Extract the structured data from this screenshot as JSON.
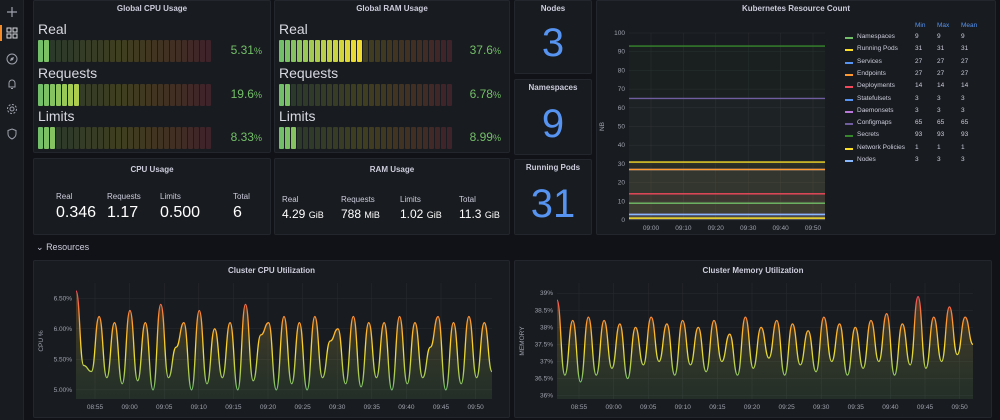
{
  "sidebar": {
    "icons": [
      "plus-icon",
      "dashboards-icon",
      "compass-icon",
      "bell-icon",
      "gear-icon",
      "shield-icon"
    ]
  },
  "global_cpu": {
    "title": "Global CPU Usage",
    "rows": [
      {
        "label": "Real",
        "value": "5.31",
        "unit": "%",
        "fill": 0.0531
      },
      {
        "label": "Requests",
        "value": "19.6",
        "unit": "%",
        "fill": 0.196
      },
      {
        "label": "Limits",
        "value": "8.33",
        "unit": "%",
        "fill": 0.0833
      }
    ]
  },
  "global_ram": {
    "title": "Global RAM Usage",
    "rows": [
      {
        "label": "Real",
        "value": "37.6",
        "unit": "%",
        "fill": 0.376
      },
      {
        "label": "Requests",
        "value": "6.78",
        "unit": "%",
        "fill": 0.0678
      },
      {
        "label": "Limits",
        "value": "8.99",
        "unit": "%",
        "fill": 0.0899
      }
    ]
  },
  "nodes": {
    "title": "Nodes",
    "value": "3"
  },
  "namespaces": {
    "title": "Namespaces",
    "value": "9"
  },
  "running_pods": {
    "title": "Running Pods",
    "value": "31"
  },
  "cpu_usage": {
    "title": "CPU Usage",
    "cols": [
      {
        "label": "Real",
        "value": "0.346",
        "unit": ""
      },
      {
        "label": "Requests",
        "value": "1.17",
        "unit": ""
      },
      {
        "label": "Limits",
        "value": "0.500",
        "unit": ""
      },
      {
        "label": "Total",
        "value": "6",
        "unit": ""
      }
    ]
  },
  "ram_usage": {
    "title": "RAM Usage",
    "cols": [
      {
        "label": "Real",
        "value": "4.29",
        "unit": "GiB"
      },
      {
        "label": "Requests",
        "value": "788",
        "unit": "MiB"
      },
      {
        "label": "Limits",
        "value": "1.02",
        "unit": "GiB"
      },
      {
        "label": "Total",
        "value": "11.3",
        "unit": "GiB"
      }
    ]
  },
  "section": {
    "label": "Resources",
    "chevron": "chevron-down-icon"
  },
  "chart_data": [
    {
      "type": "line",
      "title": "Kubernetes Resource Count",
      "ylabel": "NB",
      "ylim": [
        0,
        100
      ],
      "yticks": [
        "0",
        "10",
        "20",
        "30",
        "40",
        "50",
        "60",
        "70",
        "80",
        "90",
        "100"
      ],
      "xticks": [
        "09:00",
        "09:10",
        "09:20",
        "09:30",
        "09:40",
        "09:50"
      ],
      "legend_headers": [
        "Min",
        "Max",
        "Mean"
      ],
      "series": [
        {
          "name": "Namespaces",
          "color": "#73bf69",
          "min": "9",
          "max": "9",
          "mean": "9",
          "value": 9
        },
        {
          "name": "Running Pods",
          "color": "#fade2a",
          "min": "31",
          "max": "31",
          "mean": "31",
          "value": 31
        },
        {
          "name": "Services",
          "color": "#5794f2",
          "min": "27",
          "max": "27",
          "mean": "27",
          "value": 27
        },
        {
          "name": "Endpoints",
          "color": "#ff9830",
          "min": "27",
          "max": "27",
          "mean": "27",
          "value": 27
        },
        {
          "name": "Deployments",
          "color": "#f2495c",
          "min": "14",
          "max": "14",
          "mean": "14",
          "value": 14
        },
        {
          "name": "Statefulsets",
          "color": "#5794f2",
          "min": "3",
          "max": "3",
          "mean": "3",
          "value": 3
        },
        {
          "name": "Daemonsets",
          "color": "#b877d9",
          "min": "3",
          "max": "3",
          "mean": "3",
          "value": 3
        },
        {
          "name": "Configmaps",
          "color": "#705da0",
          "min": "65",
          "max": "65",
          "mean": "65",
          "value": 65
        },
        {
          "name": "Secrets",
          "color": "#37872d",
          "min": "93",
          "max": "93",
          "mean": "93",
          "value": 93
        },
        {
          "name": "Network Policies",
          "color": "#fade2a",
          "min": "1",
          "max": "1",
          "mean": "1",
          "value": 1
        },
        {
          "name": "Nodes",
          "color": "#8ab8ff",
          "min": "3",
          "max": "3",
          "mean": "3",
          "value": 3
        }
      ]
    },
    {
      "type": "line",
      "title": "Cluster CPU Utilization",
      "ylabel": "CPU %",
      "ylim": [
        4.85,
        6.75
      ],
      "yticks": [
        "5.00%",
        "5.50%",
        "6.00%",
        "6.50%"
      ],
      "ytick_values": [
        5.0,
        5.5,
        6.0,
        6.5
      ],
      "xticks": [
        "08:55",
        "09:00",
        "09:05",
        "09:10",
        "09:15",
        "09:20",
        "09:25",
        "09:30",
        "09:35",
        "09:40",
        "09:45",
        "09:50"
      ],
      "values": [
        6.62,
        5.4,
        5.3,
        6.2,
        5.2,
        6.1,
        5.1,
        6.3,
        5.15,
        6.1,
        5.0,
        6.4,
        5.2,
        5.7,
        6.1,
        5.0,
        6.3,
        5.1,
        6.0,
        5.2,
        6.1,
        5.0,
        6.4,
        5.15,
        5.9,
        6.1,
        5.0,
        6.2,
        5.1,
        6.1,
        5.0,
        6.2,
        5.2,
        5.8,
        6.0,
        5.1,
        6.2,
        5.05,
        6.1,
        5.2,
        6.1,
        5.0,
        6.2,
        5.1,
        6.1,
        5.2,
        5.7,
        6.2,
        5.0,
        6.1,
        5.1,
        6.2,
        5.2,
        6.1,
        5.3
      ]
    },
    {
      "type": "line",
      "title": "Cluster Memory Utilization",
      "ylabel": "MEMORY",
      "ylim": [
        35.9,
        39.3
      ],
      "yticks": [
        "36%",
        "36.5%",
        "37%",
        "37.5%",
        "38%",
        "38.5%",
        "39%"
      ],
      "ytick_values": [
        36,
        36.5,
        37,
        37.5,
        38,
        38.5,
        39
      ],
      "xticks": [
        "08:55",
        "09:00",
        "09:05",
        "09:10",
        "09:15",
        "09:20",
        "09:25",
        "09:30",
        "09:35",
        "09:40",
        "09:45",
        "09:50"
      ],
      "values": [
        38.8,
        36.6,
        38.2,
        36.4,
        38.3,
        36.6,
        38.2,
        36.8,
        38.1,
        36.5,
        38.0,
        36.9,
        38.3,
        37.0,
        38.1,
        36.6,
        38.2,
        36.9,
        38.0,
        36.7,
        38.2,
        37.0,
        37.8,
        36.6,
        38.3,
        36.8,
        38.0,
        37.1,
        38.2,
        36.6,
        38.1,
        36.9,
        37.9,
        36.7,
        38.3,
        37.0,
        38.1,
        36.6,
        38.0,
        36.8,
        38.2,
        37.0,
        38.4,
        36.6,
        38.1,
        36.9,
        38.9,
        36.8,
        38.3,
        37.0,
        38.6,
        37.2,
        38.3,
        37.5
      ]
    }
  ]
}
